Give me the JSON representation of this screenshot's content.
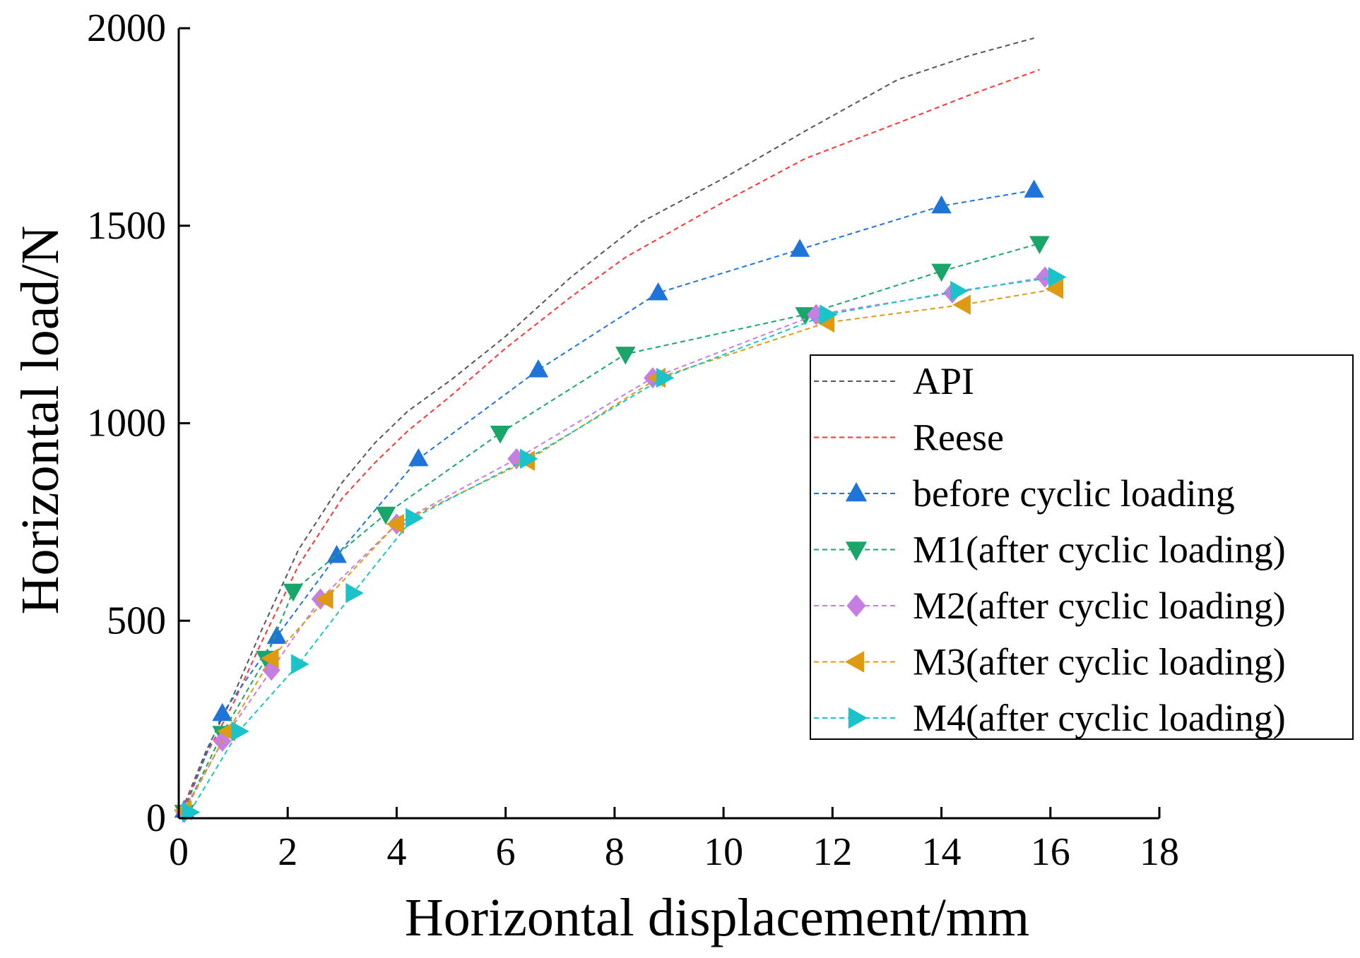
{
  "chart_data": {
    "type": "line",
    "title": "",
    "xlabel": "Horizontal displacement/mm",
    "ylabel": "Horizontal load/N",
    "xlim": [
      0,
      18
    ],
    "ylim": [
      0,
      2000
    ],
    "xticks": [
      "0",
      "2",
      "4",
      "6",
      "8",
      "10",
      "12",
      "14",
      "16",
      "18"
    ],
    "yticks": [
      "0",
      "500",
      "1000",
      "1500",
      "2000"
    ],
    "grid": false,
    "legend_position": "center-right",
    "series": [
      {
        "name": "API",
        "color": "#555555",
        "marker": "none",
        "x": [
          0,
          0.5,
          1.0,
          1.5,
          2.2,
          3.0,
          3.6,
          4.2,
          5.0,
          6.0,
          7.2,
          8.5,
          10.0,
          11.5,
          13.2,
          14.5,
          15.7
        ],
        "y": [
          0,
          170,
          310,
          470,
          680,
          850,
          950,
          1030,
          1110,
          1220,
          1370,
          1510,
          1620,
          1740,
          1870,
          1930,
          1975
        ]
      },
      {
        "name": "Reese",
        "color": "#ff3333",
        "marker": "none",
        "x": [
          0,
          0.5,
          1.0,
          1.5,
          2.2,
          3.0,
          3.6,
          4.2,
          5.0,
          6.0,
          7.2,
          8.2,
          10.0,
          11.5,
          13.2,
          14.5,
          15.8
        ],
        "y": [
          0,
          160,
          290,
          440,
          640,
          810,
          900,
          980,
          1070,
          1190,
          1320,
          1420,
          1560,
          1670,
          1760,
          1830,
          1895
        ]
      },
      {
        "name": "before cyclic loading",
        "color": "#1f74d9",
        "marker": "triangle-up",
        "x": [
          0.1,
          0.8,
          1.8,
          2.9,
          4.4,
          6.6,
          8.8,
          11.4,
          14.0,
          15.7
        ],
        "y": [
          20,
          265,
          460,
          665,
          910,
          1135,
          1330,
          1440,
          1550,
          1590
        ]
      },
      {
        "name": "M1(after cyclic loading)",
        "color": "#1aa56b",
        "marker": "triangle-down",
        "x": [
          0.1,
          0.8,
          1.6,
          2.1,
          3.8,
          5.9,
          8.2,
          11.5,
          14.0,
          15.8
        ],
        "y": [
          15,
          215,
          405,
          575,
          770,
          975,
          1175,
          1275,
          1385,
          1455
        ]
      },
      {
        "name": "M2(after cyclic loading)",
        "color": "#c77ee3",
        "marker": "diamond",
        "x": [
          0.1,
          0.8,
          1.7,
          2.6,
          4.0,
          6.2,
          8.7,
          11.7,
          14.2,
          15.9
        ],
        "y": [
          15,
          195,
          375,
          555,
          745,
          910,
          1115,
          1275,
          1330,
          1370
        ]
      },
      {
        "name": "M3(after cyclic loading)",
        "color": "#dd9a12",
        "marker": "triangle-left",
        "x": [
          0.1,
          0.9,
          1.7,
          2.7,
          4.0,
          6.4,
          8.8,
          11.9,
          14.4,
          16.1
        ],
        "y": [
          20,
          220,
          405,
          555,
          745,
          905,
          1115,
          1255,
          1300,
          1340
        ]
      },
      {
        "name": "M4(after cyclic loading)",
        "color": "#19c3c9",
        "marker": "triangle-right",
        "x": [
          0.2,
          1.1,
          2.2,
          3.2,
          4.3,
          6.4,
          8.9,
          11.9,
          14.3,
          16.1
        ],
        "y": [
          15,
          220,
          390,
          570,
          760,
          910,
          1115,
          1275,
          1335,
          1370
        ]
      }
    ]
  }
}
